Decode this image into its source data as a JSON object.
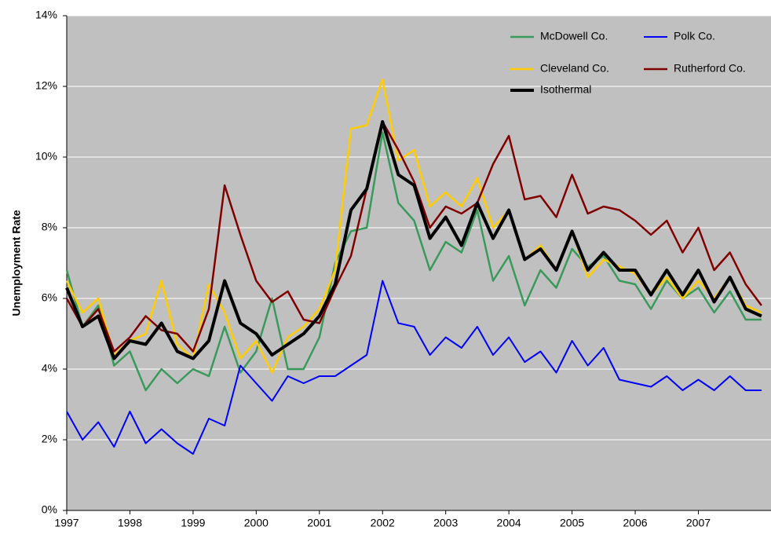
{
  "chart_data": {
    "type": "line",
    "y_label": "Unemployment Rate",
    "x": [
      1997,
      1997.25,
      1997.5,
      1997.75,
      1998,
      1998.25,
      1998.5,
      1998.75,
      1999,
      1999.25,
      1999.5,
      1999.75,
      2000,
      2000.25,
      2000.5,
      2000.75,
      2001,
      2001.25,
      2001.5,
      2001.75,
      2002,
      2002.25,
      2002.5,
      2002.75,
      2003,
      2003.25,
      2003.5,
      2003.75,
      2004,
      2004.25,
      2004.5,
      2004.75,
      2005,
      2005.25,
      2005.5,
      2005.75,
      2006,
      2006.25,
      2006.5,
      2006.75,
      2007,
      2007.25,
      2007.5,
      2007.75,
      2008
    ],
    "series": [
      {
        "name": "McDowell Co.",
        "color": "#3a9a5b",
        "width": 2.5,
        "values": [
          6.8,
          5.2,
          5.8,
          4.1,
          4.5,
          3.4,
          4.0,
          3.6,
          4.0,
          3.8,
          5.2,
          3.9,
          4.5,
          6.0,
          4.0,
          4.0,
          4.9,
          7.0,
          7.9,
          8.0,
          10.7,
          8.7,
          8.2,
          6.8,
          7.6,
          7.3,
          8.5,
          6.5,
          7.2,
          5.8,
          6.8,
          6.3,
          7.4,
          6.9,
          7.2,
          6.5,
          6.4,
          5.7,
          6.5,
          6.0,
          6.3,
          5.6,
          6.2,
          5.4,
          5.4
        ]
      },
      {
        "name": "Polk Co.",
        "color": "#0000ff",
        "width": 2,
        "values": [
          2.8,
          2.0,
          2.5,
          1.8,
          2.8,
          1.9,
          2.3,
          1.9,
          1.6,
          2.6,
          2.4,
          4.1,
          3.6,
          3.1,
          3.8,
          3.6,
          3.8,
          3.8,
          4.1,
          4.4,
          6.5,
          5.3,
          5.2,
          4.4,
          4.9,
          4.6,
          5.2,
          4.4,
          4.9,
          4.2,
          4.5,
          3.9,
          4.8,
          4.1,
          4.6,
          3.7,
          3.6,
          3.5,
          3.8,
          3.4,
          3.7,
          3.4,
          3.8,
          3.4,
          3.4
        ]
      },
      {
        "name": "Cleveland Co.",
        "color": "#ffcc00",
        "width": 2.5,
        "values": [
          6.5,
          5.6,
          6.0,
          4.4,
          4.8,
          5.0,
          6.5,
          4.7,
          4.3,
          6.4,
          5.6,
          4.3,
          4.8,
          3.9,
          4.9,
          5.2,
          5.7,
          6.8,
          10.8,
          10.9,
          12.2,
          9.9,
          10.2,
          8.6,
          9.0,
          8.6,
          9.4,
          8.0,
          8.5,
          7.1,
          7.5,
          6.8,
          7.9,
          6.6,
          7.1,
          6.9,
          6.7,
          6.1,
          6.6,
          6.0,
          6.5,
          6.0,
          6.6,
          5.8,
          5.6
        ]
      },
      {
        "name": "Rutherford Co.",
        "color": "#800000",
        "width": 2.5,
        "values": [
          6.0,
          5.2,
          5.7,
          4.5,
          4.9,
          5.5,
          5.1,
          5.0,
          4.5,
          5.7,
          9.2,
          7.8,
          6.5,
          5.9,
          6.2,
          5.4,
          5.3,
          6.3,
          7.2,
          9.1,
          11.0,
          10.2,
          9.3,
          8.0,
          8.6,
          8.4,
          8.7,
          9.8,
          10.6,
          8.8,
          8.9,
          8.3,
          9.5,
          8.4,
          8.6,
          8.5,
          8.2,
          7.8,
          8.2,
          7.3,
          8.0,
          6.8,
          7.3,
          6.4,
          5.8
        ]
      },
      {
        "name": "Isothermal",
        "color": "#000000",
        "width": 4,
        "values": [
          6.3,
          5.2,
          5.5,
          4.3,
          4.8,
          4.7,
          5.3,
          4.5,
          4.3,
          4.8,
          6.5,
          5.3,
          5.0,
          4.4,
          4.7,
          5.0,
          5.5,
          6.4,
          8.5,
          9.1,
          11.0,
          9.5,
          9.2,
          7.7,
          8.3,
          7.5,
          8.7,
          7.7,
          8.5,
          7.1,
          7.4,
          6.8,
          7.9,
          6.8,
          7.3,
          6.8,
          6.8,
          6.1,
          6.8,
          6.1,
          6.8,
          5.9,
          6.6,
          5.7,
          5.5
        ]
      }
    ],
    "xlim": [
      1997,
      2008.15
    ],
    "xticks": [
      1997,
      1998,
      1999,
      2000,
      2001,
      2002,
      2003,
      2004,
      2005,
      2006,
      2007
    ],
    "ylim": [
      0,
      14
    ],
    "yticks": [
      {
        "value": 0,
        "label": "0%"
      },
      {
        "value": 2,
        "label": "2%"
      },
      {
        "value": 4,
        "label": "4%"
      },
      {
        "value": 6,
        "label": "6%"
      },
      {
        "value": 8,
        "label": "8%"
      },
      {
        "value": 10,
        "label": "10%"
      },
      {
        "value": 12,
        "label": "12%"
      },
      {
        "value": 14,
        "label": "14%"
      }
    ],
    "grid": true,
    "background": "#c0c0c0",
    "legend": "top-right"
  }
}
